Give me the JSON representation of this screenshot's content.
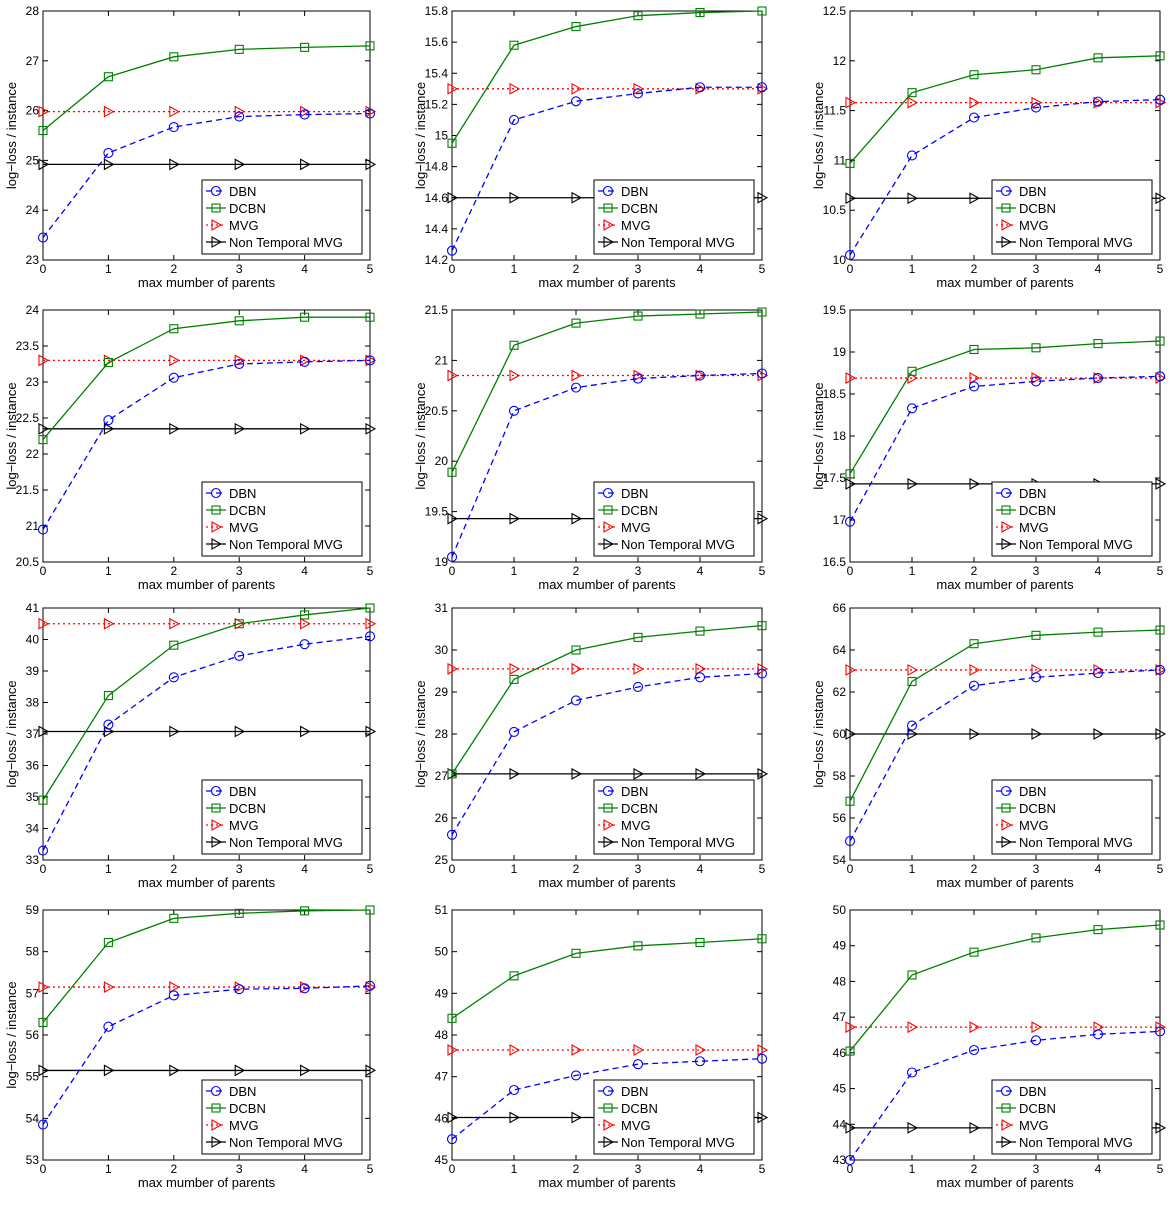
{
  "colors": {
    "DBN": "#0000ff",
    "DCBN": "#008000",
    "MVG": "#ff0000",
    "Non Temporal MVG": "#000000"
  },
  "chart_data": [
    {
      "type": "line",
      "xlabel": "max mumber of parents",
      "ylabel": "log−loss / instance",
      "x": [
        0,
        1,
        2,
        3,
        4,
        5
      ],
      "ylim": [
        23,
        28
      ],
      "yticks": [
        23,
        24,
        25,
        26,
        27,
        28
      ],
      "legend": "bottom-right",
      "series": [
        {
          "name": "DBN",
          "marker": "circle",
          "dash": "dashed",
          "values": [
            23.45,
            25.15,
            25.67,
            25.88,
            25.92,
            25.94
          ]
        },
        {
          "name": "DCBN",
          "marker": "square",
          "dash": "solid",
          "values": [
            25.6,
            26.68,
            27.08,
            27.23,
            27.27,
            27.3
          ]
        },
        {
          "name": "MVG",
          "marker": "triangle",
          "dash": "dotted",
          "values": [
            25.98,
            25.98,
            25.98,
            25.98,
            25.98,
            25.98
          ]
        },
        {
          "name": "Non Temporal MVG",
          "marker": "triangle",
          "dash": "solid",
          "values": [
            24.92,
            24.92,
            24.92,
            24.92,
            24.92,
            24.92
          ]
        }
      ]
    },
    {
      "type": "line",
      "xlabel": "max mumber of parents",
      "ylabel": "log−loss / instance",
      "x": [
        0,
        1,
        2,
        3,
        4,
        5
      ],
      "ylim": [
        14.2,
        15.8
      ],
      "yticks": [
        14.2,
        14.4,
        14.6,
        14.8,
        15,
        15.2,
        15.4,
        15.6,
        15.8
      ],
      "legend": "bottom-right",
      "series": [
        {
          "name": "DBN",
          "marker": "circle",
          "dash": "dashed",
          "values": [
            14.26,
            15.1,
            15.22,
            15.27,
            15.31,
            15.31
          ]
        },
        {
          "name": "DCBN",
          "marker": "square",
          "dash": "solid",
          "values": [
            14.95,
            15.58,
            15.7,
            15.77,
            15.79,
            15.8
          ]
        },
        {
          "name": "MVG",
          "marker": "triangle",
          "dash": "dotted",
          "values": [
            15.3,
            15.3,
            15.3,
            15.3,
            15.3,
            15.3
          ]
        },
        {
          "name": "Non Temporal MVG",
          "marker": "triangle",
          "dash": "solid",
          "values": [
            14.6,
            14.6,
            14.6,
            14.6,
            14.6,
            14.6
          ]
        }
      ]
    },
    {
      "type": "line",
      "xlabel": "max mumber of parents",
      "ylabel": "log−loss / instance",
      "x": [
        0,
        1,
        2,
        3,
        4,
        5
      ],
      "ylim": [
        10,
        12.5
      ],
      "yticks": [
        10,
        10.5,
        11,
        11.5,
        12,
        12.5
      ],
      "legend": "bottom-right",
      "series": [
        {
          "name": "DBN",
          "marker": "circle",
          "dash": "dashed",
          "values": [
            10.05,
            11.05,
            11.43,
            11.53,
            11.59,
            11.61
          ]
        },
        {
          "name": "DCBN",
          "marker": "square",
          "dash": "solid",
          "values": [
            10.97,
            11.68,
            11.86,
            11.91,
            12.03,
            12.05
          ]
        },
        {
          "name": "MVG",
          "marker": "triangle",
          "dash": "dotted",
          "values": [
            11.58,
            11.58,
            11.58,
            11.58,
            11.58,
            11.58
          ]
        },
        {
          "name": "Non Temporal MVG",
          "marker": "triangle",
          "dash": "solid",
          "values": [
            10.62,
            10.62,
            10.62,
            10.62,
            10.62,
            10.62
          ]
        }
      ]
    },
    {
      "type": "line",
      "xlabel": "max mumber of parents",
      "ylabel": "log−loss / instance",
      "x": [
        0,
        1,
        2,
        3,
        4,
        5
      ],
      "ylim": [
        20.5,
        24
      ],
      "yticks": [
        20.5,
        21,
        21.5,
        22,
        22.5,
        23,
        23.5,
        24
      ],
      "legend": "bottom-right",
      "series": [
        {
          "name": "DBN",
          "marker": "circle",
          "dash": "dashed",
          "values": [
            20.95,
            22.47,
            23.06,
            23.25,
            23.28,
            23.3
          ]
        },
        {
          "name": "DCBN",
          "marker": "square",
          "dash": "solid",
          "values": [
            22.2,
            23.27,
            23.74,
            23.85,
            23.9,
            23.9
          ]
        },
        {
          "name": "MVG",
          "marker": "triangle",
          "dash": "dotted",
          "values": [
            23.3,
            23.3,
            23.3,
            23.3,
            23.3,
            23.3
          ]
        },
        {
          "name": "Non Temporal MVG",
          "marker": "triangle",
          "dash": "solid",
          "values": [
            22.35,
            22.35,
            22.35,
            22.35,
            22.35,
            22.35
          ]
        }
      ]
    },
    {
      "type": "line",
      "xlabel": "max mumber of parents",
      "ylabel": "log−loss / instance",
      "x": [
        0,
        1,
        2,
        3,
        4,
        5
      ],
      "ylim": [
        19,
        21.5
      ],
      "yticks": [
        19,
        19.5,
        20,
        20.5,
        21,
        21.5
      ],
      "legend": "bottom-right",
      "series": [
        {
          "name": "DBN",
          "marker": "circle",
          "dash": "dashed",
          "values": [
            19.05,
            20.5,
            20.73,
            20.82,
            20.85,
            20.87
          ]
        },
        {
          "name": "DCBN",
          "marker": "square",
          "dash": "solid",
          "values": [
            19.89,
            21.15,
            21.37,
            21.44,
            21.46,
            21.48
          ]
        },
        {
          "name": "MVG",
          "marker": "triangle",
          "dash": "dotted",
          "values": [
            20.85,
            20.85,
            20.85,
            20.85,
            20.85,
            20.85
          ]
        },
        {
          "name": "Non Temporal MVG",
          "marker": "triangle",
          "dash": "solid",
          "values": [
            19.43,
            19.43,
            19.43,
            19.43,
            19.43,
            19.43
          ]
        }
      ]
    },
    {
      "type": "line",
      "xlabel": "max mumber of parents",
      "ylabel": "log−loss / instance",
      "x": [
        0,
        1,
        2,
        3,
        4,
        5
      ],
      "ylim": [
        16.5,
        19.5
      ],
      "yticks": [
        16.5,
        17,
        17.5,
        18,
        18.5,
        19,
        19.5
      ],
      "legend": "bottom-right",
      "series": [
        {
          "name": "DBN",
          "marker": "circle",
          "dash": "dashed",
          "values": [
            16.98,
            18.33,
            18.59,
            18.65,
            18.69,
            18.71
          ]
        },
        {
          "name": "DCBN",
          "marker": "square",
          "dash": "solid",
          "values": [
            17.55,
            18.77,
            19.03,
            19.05,
            19.1,
            19.13
          ]
        },
        {
          "name": "MVG",
          "marker": "triangle",
          "dash": "dotted",
          "values": [
            18.69,
            18.69,
            18.69,
            18.69,
            18.69,
            18.69
          ]
        },
        {
          "name": "Non Temporal MVG",
          "marker": "triangle",
          "dash": "solid",
          "values": [
            17.43,
            17.43,
            17.43,
            17.43,
            17.43,
            17.43
          ]
        }
      ]
    },
    {
      "type": "line",
      "xlabel": "max mumber of parents",
      "ylabel": "log−loss / instance",
      "x": [
        0,
        1,
        2,
        3,
        4,
        5
      ],
      "ylim": [
        33,
        41
      ],
      "yticks": [
        33,
        34,
        35,
        36,
        37,
        38,
        39,
        40,
        41
      ],
      "legend": "bottom-right",
      "series": [
        {
          "name": "DBN",
          "marker": "circle",
          "dash": "dashed",
          "values": [
            33.3,
            37.3,
            38.8,
            39.48,
            39.85,
            40.1
          ]
        },
        {
          "name": "DCBN",
          "marker": "square",
          "dash": "solid",
          "values": [
            34.9,
            38.22,
            39.82,
            40.5,
            40.78,
            41
          ]
        },
        {
          "name": "MVG",
          "marker": "triangle",
          "dash": "dotted",
          "values": [
            40.5,
            40.5,
            40.5,
            40.5,
            40.5,
            40.5
          ]
        },
        {
          "name": "Non Temporal MVG",
          "marker": "triangle",
          "dash": "solid",
          "values": [
            37.08,
            37.08,
            37.08,
            37.08,
            37.08,
            37.08
          ]
        }
      ]
    },
    {
      "type": "line",
      "xlabel": "max mumber of parents",
      "ylabel": "log−loss / instance",
      "x": [
        0,
        1,
        2,
        3,
        4,
        5
      ],
      "ylim": [
        25,
        31
      ],
      "yticks": [
        25,
        26,
        27,
        28,
        29,
        30,
        31
      ],
      "legend": "bottom-right",
      "series": [
        {
          "name": "DBN",
          "marker": "circle",
          "dash": "dashed",
          "values": [
            25.6,
            28.05,
            28.8,
            29.12,
            29.35,
            29.44
          ]
        },
        {
          "name": "DCBN",
          "marker": "square",
          "dash": "solid",
          "values": [
            27.05,
            29.3,
            30,
            30.3,
            30.45,
            30.58
          ]
        },
        {
          "name": "MVG",
          "marker": "triangle",
          "dash": "dotted",
          "values": [
            29.55,
            29.55,
            29.55,
            29.55,
            29.55,
            29.55
          ]
        },
        {
          "name": "Non Temporal MVG",
          "marker": "triangle",
          "dash": "solid",
          "values": [
            27.05,
            27.05,
            27.05,
            27.05,
            27.05,
            27.05
          ]
        }
      ]
    },
    {
      "type": "line",
      "xlabel": "max mumber of parents",
      "ylabel": "log−loss / instance",
      "x": [
        0,
        1,
        2,
        3,
        4,
        5
      ],
      "ylim": [
        54,
        66
      ],
      "yticks": [
        54,
        56,
        58,
        60,
        62,
        64,
        66
      ],
      "legend": "bottom-right",
      "series": [
        {
          "name": "DBN",
          "marker": "circle",
          "dash": "dashed",
          "values": [
            54.9,
            60.4,
            62.3,
            62.7,
            62.9,
            63.05
          ]
        },
        {
          "name": "DCBN",
          "marker": "square",
          "dash": "solid",
          "values": [
            56.8,
            62.5,
            64.3,
            64.7,
            64.85,
            64.95
          ]
        },
        {
          "name": "MVG",
          "marker": "triangle",
          "dash": "dotted",
          "values": [
            63.05,
            63.05,
            63.05,
            63.05,
            63.05,
            63.05
          ]
        },
        {
          "name": "Non Temporal MVG",
          "marker": "triangle",
          "dash": "solid",
          "values": [
            60,
            60,
            60,
            60,
            60,
            60
          ]
        }
      ]
    },
    {
      "type": "line",
      "xlabel": "max mumber of parents",
      "ylabel": "log−loss / instance",
      "x": [
        0,
        1,
        2,
        3,
        4,
        5
      ],
      "ylim": [
        53,
        59
      ],
      "yticks": [
        53,
        54,
        55,
        56,
        57,
        58,
        59
      ],
      "legend": "bottom-right",
      "series": [
        {
          "name": "DBN",
          "marker": "circle",
          "dash": "dashed",
          "values": [
            53.85,
            56.2,
            56.95,
            57.1,
            57.12,
            57.18
          ]
        },
        {
          "name": "DCBN",
          "marker": "square",
          "dash": "solid",
          "values": [
            56.3,
            58.22,
            58.8,
            58.92,
            58.98,
            59
          ]
        },
        {
          "name": "MVG",
          "marker": "triangle",
          "dash": "dotted",
          "values": [
            57.15,
            57.15,
            57.15,
            57.15,
            57.15,
            57.15
          ]
        },
        {
          "name": "Non Temporal MVG",
          "marker": "triangle",
          "dash": "solid",
          "values": [
            55.15,
            55.15,
            55.15,
            55.15,
            55.15,
            55.15
          ]
        }
      ]
    },
    {
      "type": "line",
      "xlabel": "max mumber of parents",
      "ylabel": "",
      "x": [
        0,
        1,
        2,
        3,
        4,
        5
      ],
      "ylim": [
        45,
        51
      ],
      "yticks": [
        45,
        46,
        47,
        48,
        49,
        50,
        51
      ],
      "legend": "bottom-right",
      "series": [
        {
          "name": "DBN",
          "marker": "circle",
          "dash": "dashed",
          "values": [
            45.5,
            46.68,
            47.03,
            47.3,
            47.37,
            47.43
          ]
        },
        {
          "name": "DCBN",
          "marker": "square",
          "dash": "solid",
          "values": [
            48.4,
            49.42,
            49.96,
            50.14,
            50.22,
            50.31
          ]
        },
        {
          "name": "MVG",
          "marker": "triangle",
          "dash": "dotted",
          "values": [
            47.64,
            47.64,
            47.64,
            47.64,
            47.64,
            47.64
          ]
        },
        {
          "name": "Non Temporal MVG",
          "marker": "triangle",
          "dash": "solid",
          "values": [
            46.02,
            46.02,
            46.02,
            46.02,
            46.02,
            46.02
          ]
        }
      ]
    },
    {
      "type": "line",
      "xlabel": "max mumber of parents",
      "ylabel": "",
      "x": [
        0,
        1,
        2,
        3,
        4,
        5
      ],
      "ylim": [
        43,
        50
      ],
      "yticks": [
        43,
        44,
        45,
        46,
        47,
        48,
        49,
        50
      ],
      "legend": "bottom-right",
      "series": [
        {
          "name": "DBN",
          "marker": "circle",
          "dash": "dashed",
          "values": [
            43,
            45.45,
            46.08,
            46.35,
            46.52,
            46.6
          ]
        },
        {
          "name": "DCBN",
          "marker": "square",
          "dash": "solid",
          "values": [
            46.05,
            48.18,
            48.82,
            49.22,
            49.45,
            49.58
          ]
        },
        {
          "name": "MVG",
          "marker": "triangle",
          "dash": "dotted",
          "values": [
            46.72,
            46.72,
            46.72,
            46.72,
            46.72,
            46.72
          ]
        },
        {
          "name": "Non Temporal MVG",
          "marker": "triangle",
          "dash": "solid",
          "values": [
            43.9,
            43.9,
            43.9,
            43.9,
            43.9,
            43.9
          ]
        }
      ]
    }
  ]
}
